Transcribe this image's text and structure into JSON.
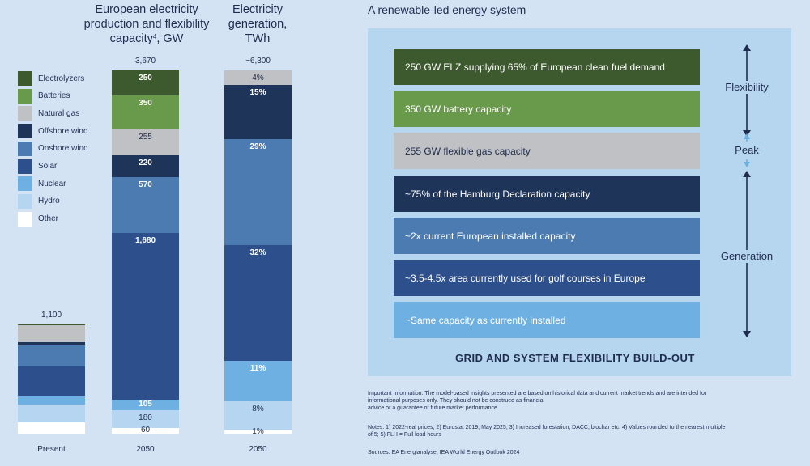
{
  "left": {
    "title_capacity": "European electricity production and flexibility capacity",
    "title_capacity_line1": "European electricity",
    "title_capacity_line2": "production and flexibility",
    "title_capacity_line3": "capacity",
    "title_capacity_sup": "4",
    "title_capacity_unit": ", GW",
    "title_generation_line1": "Electricity",
    "title_generation_line2": "generation,",
    "title_generation_line3": "TWh"
  },
  "legend": [
    {
      "label": "Electrolyzers",
      "color": "#3d5a2e"
    },
    {
      "label": "Batteries",
      "color": "#69994b"
    },
    {
      "label": "Natural gas",
      "color": "#c0c1c4"
    },
    {
      "label": "Offshore wind",
      "color": "#1f3459"
    },
    {
      "label": "Onshore wind",
      "color": "#4c7bb1"
    },
    {
      "label": "Solar",
      "color": "#2d4f8c"
    },
    {
      "label": "Nuclear",
      "color": "#6eb0e2"
    },
    {
      "label": "Hydro",
      "color": "#b5d5f1"
    },
    {
      "label": "Other",
      "color": "#ffffff"
    }
  ],
  "chart_data": [
    {
      "type": "bar",
      "stacked": true,
      "title": "European electricity production and flexibility capacity, GW",
      "categories": [
        "Present",
        "2050"
      ],
      "series": [
        {
          "name": "Electrolyzers",
          "values": [
            5,
            250
          ]
        },
        {
          "name": "Batteries",
          "values": [
            0,
            350
          ]
        },
        {
          "name": "Natural gas",
          "values": [
            170,
            255
          ]
        },
        {
          "name": "Offshore wind",
          "values": [
            30,
            220
          ]
        },
        {
          "name": "Onshore wind",
          "values": [
            215,
            570
          ]
        },
        {
          "name": "Solar",
          "values": [
            300,
            1680
          ]
        },
        {
          "name": "Nuclear",
          "values": [
            85,
            105
          ]
        },
        {
          "name": "Hydro",
          "values": [
            180,
            180
          ]
        },
        {
          "name": "Other",
          "values": [
            115,
            60
          ]
        }
      ],
      "totals": [
        "1,100",
        "3,670"
      ],
      "data_labels": {
        "2050": [
          "250",
          "350",
          "255",
          "220",
          "570",
          "1,680",
          "105",
          "180",
          "60"
        ]
      },
      "xlabel": "",
      "ylabel": "GW"
    },
    {
      "type": "bar",
      "stacked": true,
      "title": "Electricity generation, TWh",
      "categories": [
        "2050"
      ],
      "series": [
        {
          "name": "Natural gas",
          "values": [
            4
          ]
        },
        {
          "name": "Offshore wind",
          "values": [
            15
          ]
        },
        {
          "name": "Onshore wind",
          "values": [
            29
          ]
        },
        {
          "name": "Solar",
          "values": [
            32
          ]
        },
        {
          "name": "Nuclear",
          "values": [
            11
          ]
        },
        {
          "name": "Hydro",
          "values": [
            8
          ]
        },
        {
          "name": "Other",
          "values": [
            1
          ]
        }
      ],
      "unit": "%",
      "totals": [
        "~6,300"
      ],
      "data_labels": {
        "2050": [
          "4%",
          "15%",
          "29%",
          "32%",
          "11%",
          "8%",
          "1%"
        ]
      }
    }
  ],
  "right": {
    "title": "A renewable-led energy system",
    "rows": [
      {
        "text": "250 GW ELZ supplying 65% of European clean fuel demand",
        "color": "#3d5a2e",
        "text_color": "#ffffff"
      },
      {
        "text": "350 GW battery capacity",
        "color": "#69994b",
        "text_color": "#ffffff"
      },
      {
        "text": "255 GW flexible gas capacity",
        "color": "#c0c1c4",
        "text_color": "#1f2c4d"
      },
      {
        "text": "~75% of the Hamburg Declaration capacity",
        "color": "#1f3459",
        "text_color": "#ffffff"
      },
      {
        "text": "~2x current European installed capacity",
        "color": "#4c7bb1",
        "text_color": "#ffffff"
      },
      {
        "text": "~3.5-4.5x area currently used for golf courses in Europe",
        "color": "#2d4f8c",
        "text_color": "#ffffff"
      },
      {
        "text": "~Same capacity as currently installed",
        "color": "#6eb0e2",
        "text_color": "#ffffff"
      }
    ],
    "side_labels": {
      "flexibility": "Flexibility",
      "peak": "Peak",
      "generation": "Generation"
    },
    "footer_heading": "GRID AND SYSTEM FLEXIBILITY BUILD-OUT"
  },
  "notes": {
    "important_line1": "Important Information: The model-based insights presented are based on historical data and current market trends and are intended for",
    "important_line2": "informational purposes only. They should not be construed as financial",
    "important_line3": "advice or a guarantee of future market performance.",
    "notes_line1": "Notes: 1) 2022-real prices, 2) Eurostat 2019, May 2025, 3) Increased forestation, DACC, biochar etc. 4) Values rounded to the nearest multiple",
    "notes_line2": "of 5; 5) FLH = Full load hours",
    "sources": "Sources: EA Energianalyse, IEA World Energy Outlook 2024"
  }
}
